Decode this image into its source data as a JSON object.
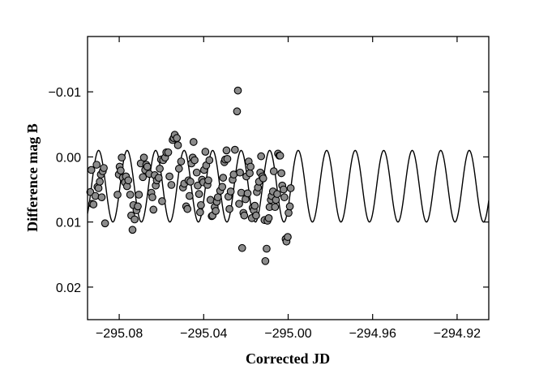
{
  "chart_data": {
    "type": "scatter",
    "title": "",
    "xlabel": "Corrected JD",
    "ylabel": "Difference mag B",
    "xlim": [
      -295.095,
      -294.905
    ],
    "ylim": [
      0.025,
      -0.0185
    ],
    "y_inverted": true,
    "grid": false,
    "legend": "none",
    "x_ticks": [
      -295.08,
      -295.04,
      -295.0,
      -294.96,
      -294.92
    ],
    "x_tick_labels": [
      "-295.08",
      "-295.04",
      "-295.00",
      "-294.96",
      "-294.92"
    ],
    "y_ticks": [
      -0.01,
      0.0,
      0.01,
      0.02
    ],
    "y_tick_labels": [
      "-0.01",
      "0.00",
      "0.01",
      "0.02"
    ],
    "marker_fill": "#8c8c8c",
    "marker_edge": "#000000",
    "line_color": "#000000",
    "series": [
      {
        "type": "scatter",
        "points": [
          [
            -295.0937,
            0.0054
          ],
          [
            -295.0932,
            0.002
          ],
          [
            -295.0928,
            0.0072
          ],
          [
            -295.0922,
            0.0073
          ],
          [
            -295.0913,
            0.006
          ],
          [
            -295.0907,
            0.0012
          ],
          [
            -295.0903,
            0.0046
          ],
          [
            -295.0898,
            0.0048
          ],
          [
            -295.0892,
            0.0038
          ],
          [
            -295.0887,
            0.0027
          ],
          [
            -295.0883,
            0.0062
          ],
          [
            -295.0878,
            0.0022
          ],
          [
            -295.0873,
            0.0017
          ],
          [
            -295.0867,
            0.0102
          ],
          [
            -295.0808,
            0.0058
          ],
          [
            -295.0802,
            0.0027
          ],
          [
            -295.0798,
            0.0015
          ],
          [
            -295.0793,
            0.0021
          ],
          [
            -295.0788,
            0.0001
          ],
          [
            -295.0783,
            0.0032
          ],
          [
            -295.0773,
            0.0039
          ],
          [
            -295.0768,
            0.003
          ],
          [
            -295.0763,
            0.0045
          ],
          [
            -295.0757,
            0.0036
          ],
          [
            -295.0748,
            0.0058
          ],
          [
            -295.0743,
            0.009
          ],
          [
            -295.0737,
            0.0112
          ],
          [
            -295.0733,
            0.0074
          ],
          [
            -295.0727,
            0.0096
          ],
          [
            -295.0718,
            0.0082
          ],
          [
            -295.0712,
            0.0076
          ],
          [
            -295.0707,
            0.0058
          ],
          [
            -295.0698,
            0.001
          ],
          [
            -295.0688,
            0.0031
          ],
          [
            -295.0683,
            0.0001
          ],
          [
            -295.0677,
            0.002
          ],
          [
            -295.0672,
            0.0012
          ],
          [
            -295.0667,
            0.0015
          ],
          [
            -295.0658,
            0.0026
          ],
          [
            -295.0648,
            0.0055
          ],
          [
            -295.0643,
            0.0062
          ],
          [
            -295.0638,
            0.0081
          ],
          [
            -295.0632,
            0.0028
          ],
          [
            -295.0627,
            0.0044
          ],
          [
            -295.0622,
            0.0036
          ],
          [
            -295.0613,
            0.0032
          ],
          [
            -295.0608,
            0.0018
          ],
          [
            -295.0602,
            0.0004
          ],
          [
            -295.0597,
            0.0068
          ],
          [
            -295.0592,
            0.0005
          ],
          [
            -295.0583,
            0.0001
          ],
          [
            -295.0577,
            -0.0007
          ],
          [
            -295.0568,
            -0.0007
          ],
          [
            -295.0562,
            0.003
          ],
          [
            -295.0553,
            0.0043
          ],
          [
            -295.0547,
            -0.0026
          ],
          [
            -295.0542,
            -0.0029
          ],
          [
            -295.0537,
            -0.0034
          ],
          [
            -295.0527,
            -0.0029
          ],
          [
            -295.0522,
            -0.0018
          ],
          [
            -295.0517,
            0.0018
          ],
          [
            -295.0507,
            0.0007
          ],
          [
            -295.0498,
            0.0047
          ],
          [
            -295.0492,
            0.0041
          ],
          [
            -295.0483,
            0.0076
          ],
          [
            -295.0477,
            0.008
          ],
          [
            -295.0472,
            0.0036
          ],
          [
            -295.0467,
            0.006
          ],
          [
            -295.0463,
            0.0038
          ],
          [
            -295.0458,
            0.001
          ],
          [
            -295.0452,
            0.0001
          ],
          [
            -295.0448,
            -0.0023
          ],
          [
            -295.0443,
            0.0005
          ],
          [
            -295.0433,
            0.0024
          ],
          [
            -295.0428,
            0.0044
          ],
          [
            -295.0422,
            0.0057
          ],
          [
            -295.0417,
            0.0085
          ],
          [
            -295.0413,
            0.0074
          ],
          [
            -295.0408,
            0.0035
          ],
          [
            -295.0402,
            0.0039
          ],
          [
            -295.0398,
            0.002
          ],
          [
            -295.0392,
            -0.0008
          ],
          [
            -295.0388,
            0.0013
          ],
          [
            -295.0382,
            0.0043
          ],
          [
            -295.0378,
            0.0036
          ],
          [
            -295.0373,
            0.0005
          ],
          [
            -295.0368,
            0.0066
          ],
          [
            -295.0362,
            0.0091
          ],
          [
            -295.0358,
            0.009
          ],
          [
            -295.0348,
            0.0077
          ],
          [
            -295.0343,
            0.0083
          ],
          [
            -295.0338,
            0.0069
          ],
          [
            -295.0333,
            0.0062
          ],
          [
            -295.0322,
            0.0052
          ],
          [
            -295.0312,
            0.0046
          ],
          [
            -295.0308,
            0.0032
          ],
          [
            -295.0302,
            0.0008
          ],
          [
            -295.0298,
            0.0004
          ],
          [
            -295.0292,
            -0.001
          ],
          [
            -295.0288,
            0.0003
          ],
          [
            -295.0283,
            0.0061
          ],
          [
            -295.0278,
            0.008
          ],
          [
            -295.0272,
            0.0053
          ],
          [
            -295.0263,
            0.0035
          ],
          [
            -295.0258,
            0.0027
          ],
          [
            -295.0252,
            -0.0011
          ],
          [
            -295.0242,
            -0.007
          ],
          [
            -295.0238,
            -0.0102
          ],
          [
            -295.0232,
            0.0072
          ],
          [
            -295.0228,
            0.0024
          ],
          [
            -295.0222,
            0.0055
          ],
          [
            -295.0218,
            0.014
          ],
          [
            -295.0212,
            0.0086
          ],
          [
            -295.0208,
            0.009
          ],
          [
            -295.0202,
            0.0065
          ],
          [
            -295.0198,
            0.003
          ],
          [
            -295.0192,
            0.0056
          ],
          [
            -295.0187,
            0.0007
          ],
          [
            -295.0182,
            0.0025
          ],
          [
            -295.0178,
            0.0015
          ],
          [
            -295.0172,
            0.0094
          ],
          [
            -295.0168,
            0.0078
          ],
          [
            -295.0163,
            0.0082
          ],
          [
            -295.0158,
            0.0075
          ],
          [
            -295.0152,
            0.009
          ],
          [
            -295.0148,
            0.0054
          ],
          [
            -295.0143,
            0.0047
          ],
          [
            -295.0138,
            0.0038
          ],
          [
            -295.0132,
            0.0024
          ],
          [
            -295.0128,
            -0.0001
          ],
          [
            -295.0122,
            0.003
          ],
          [
            -295.0118,
            0.0033
          ],
          [
            -295.0112,
            0.0097
          ],
          [
            -295.0108,
            0.016
          ],
          [
            -295.0102,
            0.0141
          ],
          [
            -295.0098,
            0.0098
          ],
          [
            -295.0092,
            0.0094
          ],
          [
            -295.0088,
            0.0077
          ],
          [
            -295.0082,
            0.0066
          ],
          [
            -295.0078,
            0.006
          ],
          [
            -295.0072,
            0.0053
          ],
          [
            -295.0068,
            0.0022
          ],
          [
            -295.0062,
            0.0077
          ],
          [
            -295.0058,
            0.0066
          ],
          [
            -295.0052,
            0.0057
          ],
          [
            -295.0048,
            -0.0005
          ],
          [
            -295.0042,
            -0.0002
          ],
          [
            -295.0038,
            -0.0002
          ],
          [
            -295.0032,
            0.0025
          ],
          [
            -295.0028,
            0.0044
          ],
          [
            -295.0022,
            0.005
          ],
          [
            -295.0018,
            0.0062
          ],
          [
            -295.0012,
            0.0126
          ],
          [
            -295.0008,
            0.013
          ],
          [
            -295.0002,
            0.0123
          ],
          [
            -294.9998,
            0.0086
          ],
          [
            -294.9992,
            0.0076
          ],
          [
            -294.9988,
            0.0048
          ]
        ]
      },
      {
        "type": "line",
        "name": ""
      }
    ]
  }
}
